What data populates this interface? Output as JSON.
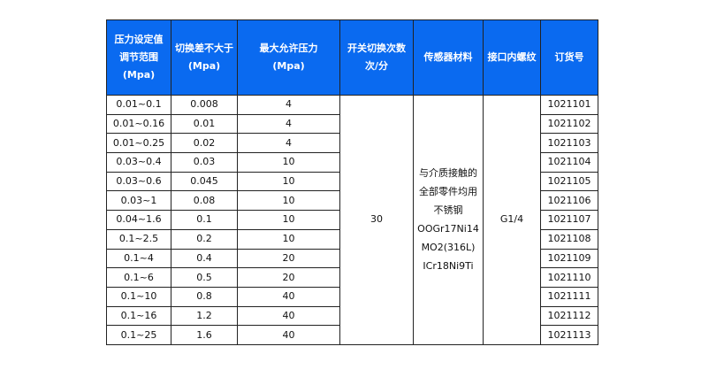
{
  "headers": [
    "压力设定值调节范围(Mpa)",
    "切换差不大于(Mpa)",
    "最大允许压力(Mpa)",
    "开关切换次数次/分",
    "传感器材料",
    "接口内螺纹",
    "订货号"
  ],
  "header_lines": [
    [
      "压力设定值",
      "调节范围",
      "(Mpa)"
    ],
    [
      "切换差不大于",
      "(Mpa)"
    ],
    [
      "最大允许压力",
      "(Mpa)"
    ],
    [
      "开关切换次数",
      "次/分"
    ],
    [
      "传感器材料"
    ],
    [
      "接口内螺纹"
    ],
    [
      "订货号"
    ]
  ],
  "header_color": "#0a6af0",
  "rows": [
    [
      "0.01~0.1",
      "0.008",
      "4",
      "1021101"
    ],
    [
      "0.01~0.16",
      "0.01",
      "4",
      "1021102"
    ],
    [
      "0.01~0.25",
      "0.02",
      "4",
      "1021103"
    ],
    [
      "0.03~0.4",
      "0.03",
      "10",
      "1021104"
    ],
    [
      "0.03~0.6",
      "0.045",
      "10",
      "1021105"
    ],
    [
      "0.03~1",
      "0.08",
      "10",
      "1021106"
    ],
    [
      "0.04~1.6",
      "0.1",
      "10",
      "1021107"
    ],
    [
      "0.1~2.5",
      "0.2",
      "10",
      "1021108"
    ],
    [
      "0.1~4",
      "0.4",
      "20",
      "1021109"
    ],
    [
      "0.1~6",
      "0.5",
      "20",
      "1021110"
    ],
    [
      "0.1~10",
      "0.8",
      "40",
      "1021111"
    ],
    [
      "0.1~16",
      "1.2",
      "40",
      "1021112"
    ],
    [
      "0.1~25",
      "1.6",
      "40",
      "1021113"
    ]
  ],
  "switch_count": "30",
  "material_lines": [
    "与介质接触的",
    "全部零件均用",
    "不锈钢",
    "OOGr17Ni14",
    "MO2(316L)",
    "ICr18Ni9Ti"
  ],
  "thread": "G1/4"
}
